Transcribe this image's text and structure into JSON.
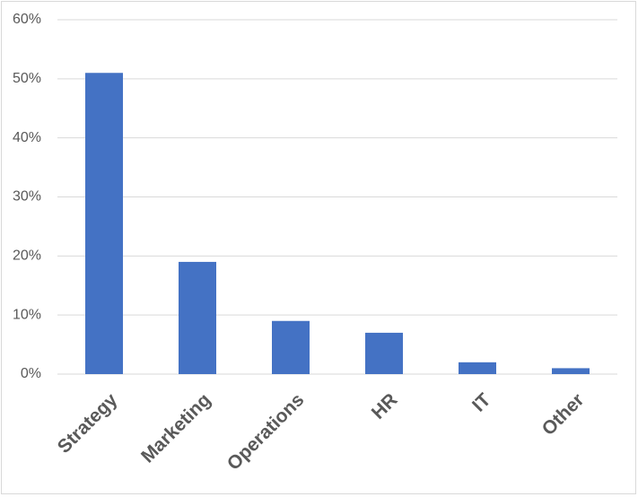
{
  "chart_data": {
    "type": "bar",
    "categories": [
      "Strategy",
      "Marketing",
      "Operations",
      "HR",
      "IT",
      "Other"
    ],
    "values": [
      51,
      19,
      9,
      7,
      2,
      1
    ],
    "color": "#4472c4",
    "ylim": [
      0,
      60
    ],
    "yticks": [
      {
        "value": 0,
        "label": "0%"
      },
      {
        "value": 10,
        "label": "10%"
      },
      {
        "value": 20,
        "label": "20%"
      },
      {
        "value": 30,
        "label": "30%"
      },
      {
        "value": 40,
        "label": "40%"
      },
      {
        "value": 50,
        "label": "50%"
      },
      {
        "value": 60,
        "label": "60%"
      }
    ],
    "grid": true
  }
}
